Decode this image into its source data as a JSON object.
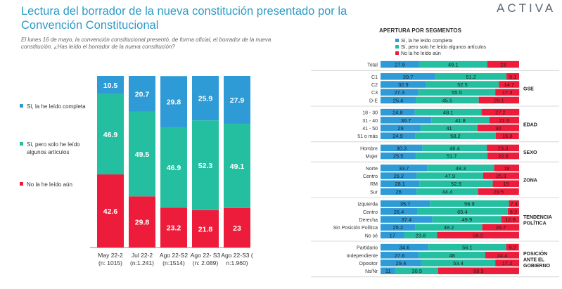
{
  "header": {
    "title": "Lectura del borrador de la nueva constitución presentado por la Convención Constitucional",
    "subtitle": "El lunes 16 de mayo, la convención constitucional presentó, de forma oficial, el borrador de la nueva constitución. ¿Has leído el borrador de la nueva constitución?",
    "logo": "ACTIVA"
  },
  "colors": {
    "completa": "#2e9bd6",
    "algunos": "#24bfa0",
    "no": "#ed1c3a"
  },
  "chart_data": [
    {
      "type": "bar",
      "stacked": true,
      "categories": [
        [
          "May 22-2",
          "(n: 1015)"
        ],
        [
          "Jul 22-2",
          "(n:1.241)"
        ],
        [
          "Ago 22-S2",
          "(n:1514)"
        ],
        [
          "Ago 22- S3",
          "(n: 2.089)"
        ],
        [
          "Ago 22-S3 (",
          "n:1.960)"
        ]
      ],
      "series": [
        {
          "name": "No la he leído aún",
          "key": "no",
          "values": [
            42.6,
            29.8,
            23.2,
            21.8,
            23
          ]
        },
        {
          "name": "Sí, pero solo he leído algunos artículos",
          "key": "algunos",
          "values": [
            46.9,
            49.5,
            46.9,
            52.3,
            49.1
          ]
        },
        {
          "name": "Sí, la he leído completa",
          "key": "completa",
          "values": [
            10.5,
            20.7,
            29.8,
            25.9,
            27.9
          ]
        }
      ],
      "ylim": [
        0,
        100
      ]
    },
    {
      "type": "bar",
      "orientation": "horizontal",
      "stacked": true,
      "title": "APERTURA POR SEGMENTOS",
      "legend": [
        "Sí, la he leído completa",
        "Sí, pero solo he leído algunos artículos",
        "No la he leído aún"
      ],
      "groups": [
        {
          "label": "",
          "rows": [
            {
              "label": "Total",
              "values": [
                27.9,
                49.1,
                23
              ]
            }
          ]
        },
        {
          "label": "GSE",
          "rows": [
            {
              "label": "C1",
              "values": [
                39.7,
                51.2,
                9.1
              ]
            },
            {
              "label": "C2",
              "values": [
                32.9,
                52.5,
                14.7
              ]
            },
            {
              "label": "C3",
              "values": [
                27.3,
                55.5,
                17.3
              ]
            },
            {
              "label": "D-E",
              "values": [
                25.4,
                45.5,
                29.1
              ]
            }
          ]
        },
        {
          "label": "EDAD",
          "rows": [
            {
              "label": "18 - 30",
              "values": [
                24.8,
                48.1,
                27.2
              ]
            },
            {
              "label": "31 - 40",
              "values": [
                36.7,
                41.8,
                21.5
              ]
            },
            {
              "label": "41 - 50",
              "values": [
                29,
                41,
                30
              ]
            },
            {
              "label": "51 o más",
              "values": [
                24.9,
                58.2,
                16.8
              ]
            }
          ]
        },
        {
          "label": "SEXO",
          "rows": [
            {
              "label": "Hombre",
              "values": [
                30.3,
                46.4,
                23.3
              ]
            },
            {
              "label": "Mujer",
              "values": [
                25.5,
                51.7,
                22.8
              ]
            }
          ]
        },
        {
          "label": "ZONA",
          "rows": [
            {
              "label": "Norte",
              "values": [
                33.7,
                48.3,
                18
              ]
            },
            {
              "label": "Centro",
              "values": [
                26.2,
                47.9,
                25.9
              ]
            },
            {
              "label": "RM",
              "values": [
                28.1,
                52.9,
                19
              ]
            },
            {
              "label": "Sur",
              "values": [
                26,
                44.4,
                29.5
              ]
            }
          ]
        },
        {
          "label": "TENDENCIA POLÍTICA",
          "rows": [
            {
              "label": "Izquierda",
              "values": [
                35.7,
                56.9,
                7.4
              ]
            },
            {
              "label": "Centro",
              "values": [
                26.4,
                65.4,
                8.2
              ]
            },
            {
              "label": "Derecha",
              "values": [
                37.4,
                49.9,
                12.8
              ]
            },
            {
              "label": "Sin Posición Política",
              "values": [
                25.2,
                48.2,
                26.7
              ]
            },
            {
              "label": "No sé",
              "values": [
                17,
                23.8,
                59.2
              ]
            }
          ]
        },
        {
          "label": "POSICIÓN ANTE EL GOBIERNO",
          "rows": [
            {
              "label": "Partidario",
              "values": [
                34.6,
                56.1,
                9.2
              ]
            },
            {
              "label": "Independiente",
              "values": [
                27.6,
                48,
                24.4
              ]
            },
            {
              "label": "Opositor",
              "values": [
                29.4,
                53.4,
                17.2
              ]
            },
            {
              "label": "Ns/Nr",
              "values": [
                11,
                30.5,
                58.5
              ]
            }
          ]
        }
      ]
    }
  ]
}
